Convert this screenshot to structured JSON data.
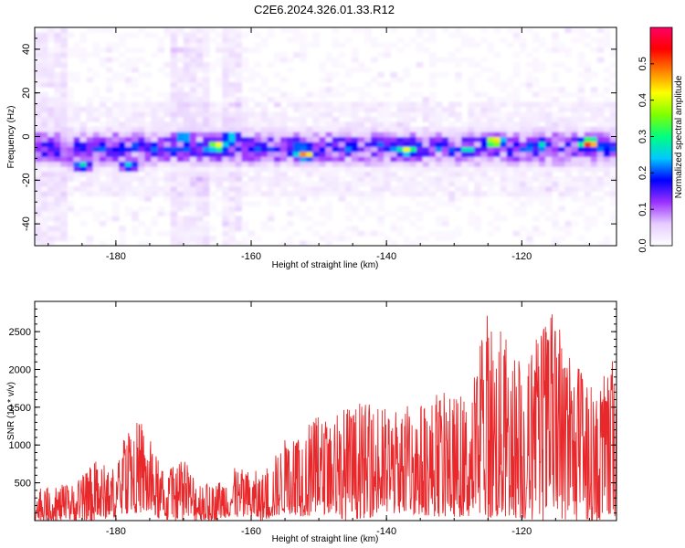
{
  "title": "C2E6.2024.326.01.33.R12",
  "chart_data": [
    {
      "type": "heatmap",
      "xlabel": "Height of straight line (km)",
      "ylabel": "Frequency (Hz)",
      "xlim": [
        -192,
        -106
      ],
      "ylim": [
        -50,
        50
      ],
      "xticks": [
        -180,
        -160,
        -140,
        -120
      ],
      "yticks": [
        -40,
        -20,
        0,
        20,
        40
      ],
      "colorbar": {
        "label": "Normalized spectral amplitude",
        "range": [
          0,
          0.6
        ],
        "ticks": [
          0,
          0.1,
          0.2,
          0.3,
          0.4,
          0.5
        ],
        "colors": [
          "#ffffff",
          "#e6ccff",
          "#9b30ff",
          "#0000ff",
          "#00c8ff",
          "#00ff80",
          "#80ff00",
          "#ffff00",
          "#ff8000",
          "#ff0000",
          "#ff0066"
        ]
      },
      "band": {
        "center_hz": -5,
        "halfwidth_hz": 8,
        "typical_amplitude": 0.15,
        "peak_amplitude": 0.55
      },
      "hotspots": [
        {
          "x": -185,
          "y": -13,
          "v": 0.28
        },
        {
          "x": -178,
          "y": -13,
          "v": 0.26
        },
        {
          "x": -170,
          "y": 0,
          "v": 0.3
        },
        {
          "x": -165,
          "y": -4,
          "v": 0.45
        },
        {
          "x": -163,
          "y": 0,
          "v": 0.3
        },
        {
          "x": -152,
          "y": -8,
          "v": 0.5
        },
        {
          "x": -141,
          "y": -3,
          "v": 0.22
        },
        {
          "x": -137,
          "y": -6,
          "v": 0.42
        },
        {
          "x": -128,
          "y": -6,
          "v": 0.3
        },
        {
          "x": -124,
          "y": -2,
          "v": 0.5
        },
        {
          "x": -117,
          "y": -3,
          "v": 0.28
        },
        {
          "x": -110,
          "y": -3,
          "v": 0.55
        }
      ]
    },
    {
      "type": "line",
      "xlabel": "Height of straight line (km)",
      "ylabel": "SNR (10 * v/v)",
      "xlim": [
        -192,
        -106
      ],
      "ylim": [
        0,
        2900
      ],
      "xticks": [
        -180,
        -160,
        -140,
        -120
      ],
      "yticks": [
        500,
        1000,
        1500,
        2000,
        2500
      ],
      "color": "#e8282b",
      "envelope": [
        {
          "x": -192,
          "lo": 0,
          "hi": 420
        },
        {
          "x": -186,
          "lo": 0,
          "hi": 500
        },
        {
          "x": -183,
          "lo": 0,
          "hi": 800
        },
        {
          "x": -180,
          "lo": 50,
          "hi": 700
        },
        {
          "x": -178,
          "lo": 100,
          "hi": 1350
        },
        {
          "x": -176,
          "lo": 100,
          "hi": 1300
        },
        {
          "x": -173,
          "lo": 0,
          "hi": 650
        },
        {
          "x": -170,
          "lo": 0,
          "hi": 800
        },
        {
          "x": -166,
          "lo": 0,
          "hi": 450
        },
        {
          "x": -163,
          "lo": 50,
          "hi": 700
        },
        {
          "x": -158,
          "lo": 0,
          "hi": 650
        },
        {
          "x": -155,
          "lo": 100,
          "hi": 1100
        },
        {
          "x": -152,
          "lo": 50,
          "hi": 1350
        },
        {
          "x": -148,
          "lo": 100,
          "hi": 1400
        },
        {
          "x": -146,
          "lo": 0,
          "hi": 1550
        },
        {
          "x": -142,
          "lo": 50,
          "hi": 1550
        },
        {
          "x": -138,
          "lo": 100,
          "hi": 1500
        },
        {
          "x": -132,
          "lo": 50,
          "hi": 1700
        },
        {
          "x": -128,
          "lo": 50,
          "hi": 1650
        },
        {
          "x": -125,
          "lo": 0,
          "hi": 2880
        },
        {
          "x": -122,
          "lo": 50,
          "hi": 2350
        },
        {
          "x": -119,
          "lo": 0,
          "hi": 2200
        },
        {
          "x": -116,
          "lo": 0,
          "hi": 2850
        },
        {
          "x": -112,
          "lo": 0,
          "hi": 2150
        },
        {
          "x": -109,
          "lo": 0,
          "hi": 1700
        },
        {
          "x": -106,
          "lo": 50,
          "hi": 2300
        }
      ]
    }
  ]
}
